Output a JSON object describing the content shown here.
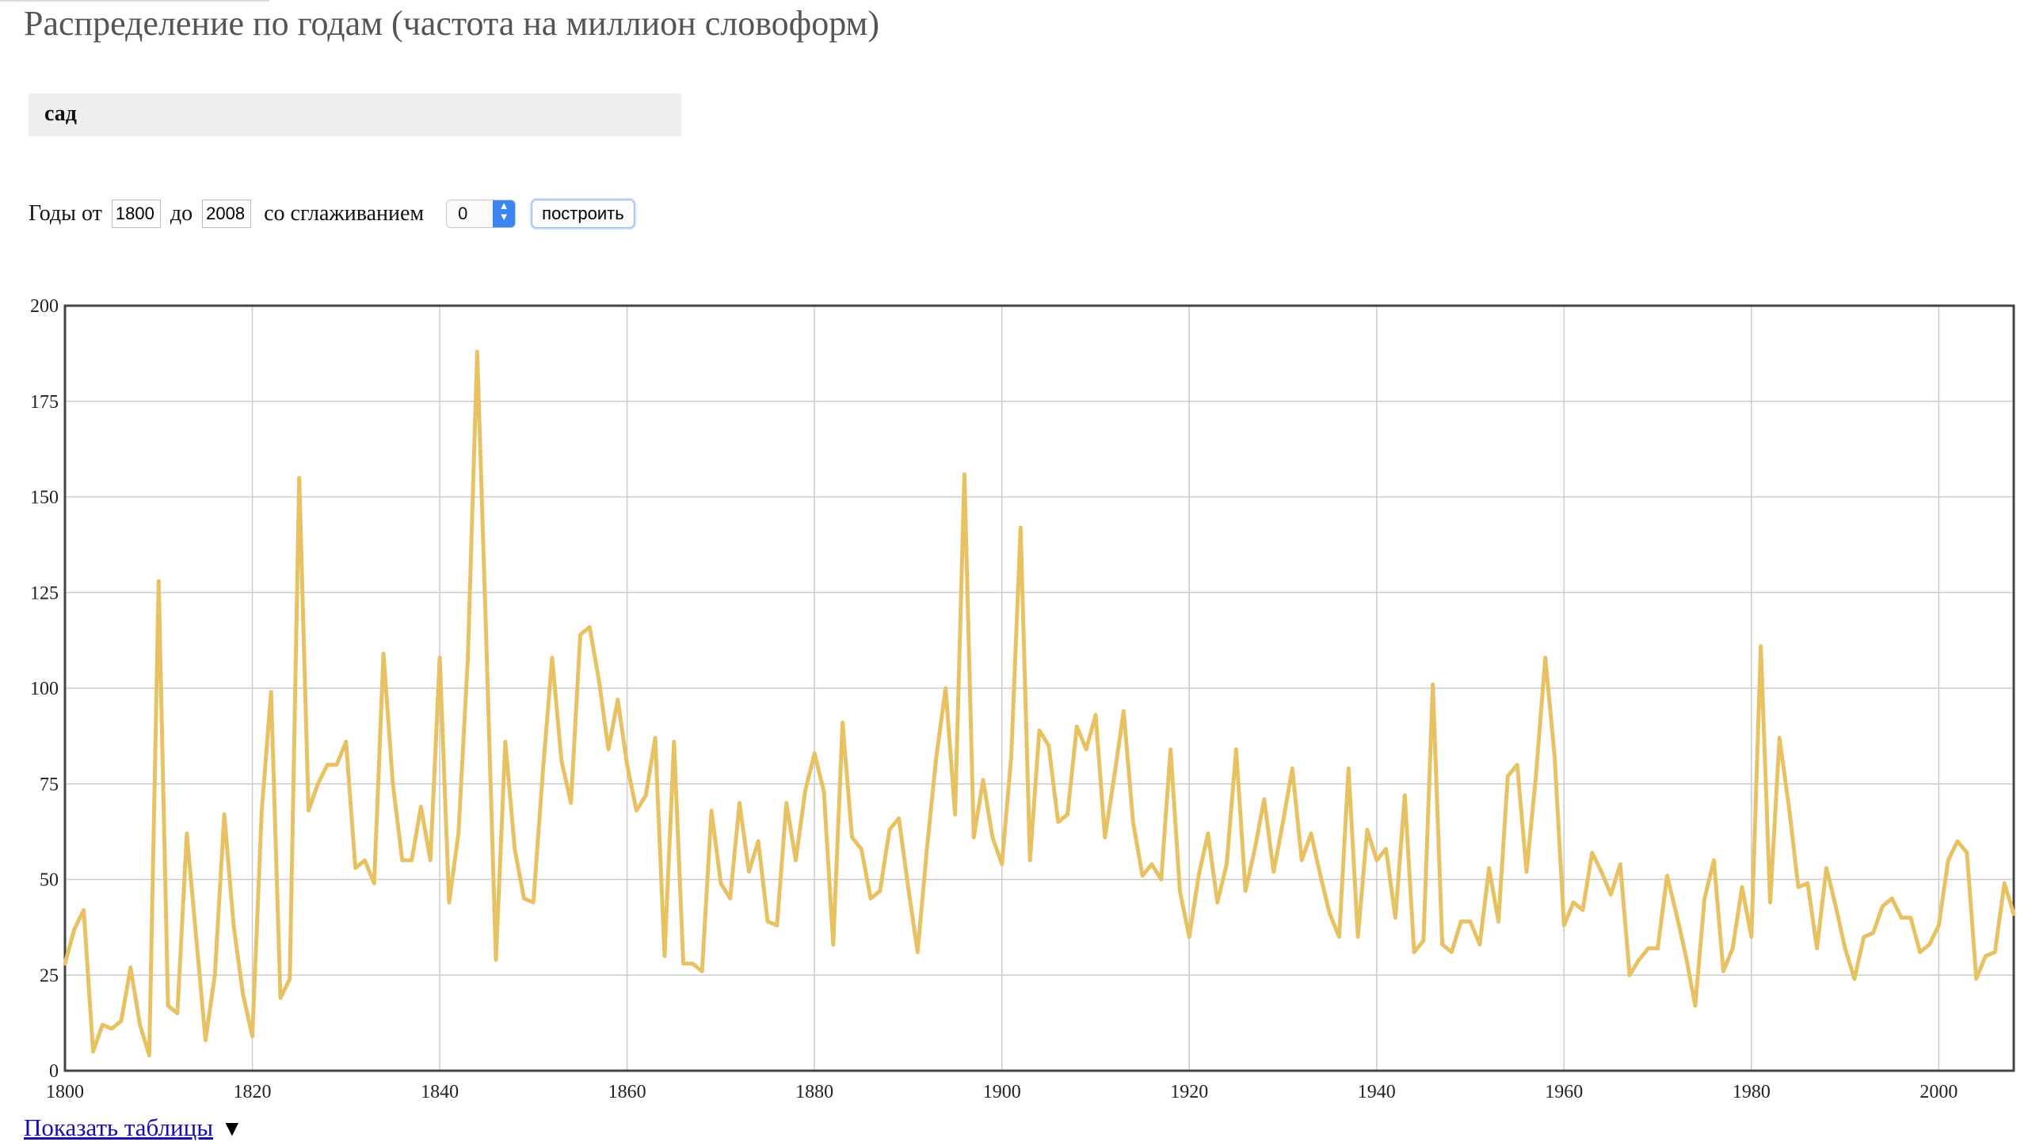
{
  "page": {
    "title": "Распределение по годам (частота на миллион словоформ)"
  },
  "query": {
    "text": "сад"
  },
  "controls": {
    "years_from_label": "Годы от",
    "year_from": "1800",
    "to_label": "до",
    "year_to": "2008",
    "smoothing_label": "со сглаживанием",
    "smoothing_value": "0",
    "build_button": "построить"
  },
  "footer": {
    "show_tables_link": "Показать таблицы",
    "toggle_arrow": "▼"
  },
  "colors": {
    "series": "#e8c163",
    "grid": "#cccccc",
    "frame": "#444444"
  },
  "chart_data": {
    "type": "line",
    "title": "",
    "xlabel": "",
    "ylabel": "",
    "xlim": [
      1800,
      2008
    ],
    "ylim": [
      0,
      200
    ],
    "xticks": [
      1800,
      1820,
      1840,
      1860,
      1880,
      1900,
      1920,
      1940,
      1960,
      1980,
      2000
    ],
    "yticks": [
      0,
      25,
      50,
      75,
      100,
      125,
      150,
      175,
      200
    ],
    "grid": true,
    "legend": "none",
    "series": [
      {
        "x": [
          1800,
          1801,
          1802,
          1803,
          1804,
          1805,
          1806,
          1807,
          1808,
          1809,
          1810,
          1811,
          1812,
          1813,
          1814,
          1815,
          1816,
          1817,
          1818,
          1819,
          1820,
          1821,
          1822,
          1823,
          1824,
          1825,
          1826,
          1827,
          1828,
          1829,
          1830,
          1831,
          1832,
          1833,
          1834,
          1835,
          1836,
          1837,
          1838,
          1839,
          1840,
          1841,
          1842,
          1843,
          1844,
          1845,
          1846,
          1847,
          1848,
          1849,
          1850,
          1851,
          1852,
          1853,
          1854,
          1855,
          1856,
          1857,
          1858,
          1859,
          1860,
          1861,
          1862,
          1863,
          1864,
          1865,
          1866,
          1867,
          1868,
          1869,
          1870,
          1871,
          1872,
          1873,
          1874,
          1875,
          1876,
          1877,
          1878,
          1879,
          1880,
          1881,
          1882,
          1883,
          1884,
          1885,
          1886,
          1887,
          1888,
          1889,
          1890,
          1891,
          1892,
          1893,
          1894,
          1895,
          1896,
          1897,
          1898,
          1899,
          1900,
          1901,
          1902,
          1903,
          1904,
          1905,
          1906,
          1907,
          1908,
          1909,
          1910,
          1911,
          1912,
          1913,
          1914,
          1915,
          1916,
          1917,
          1918,
          1919,
          1920,
          1921,
          1922,
          1923,
          1924,
          1925,
          1926,
          1927,
          1928,
          1929,
          1930,
          1931,
          1932,
          1933,
          1934,
          1935,
          1936,
          1937,
          1938,
          1939,
          1940,
          1941,
          1942,
          1943,
          1944,
          1945,
          1946,
          1947,
          1948,
          1949,
          1950,
          1951,
          1952,
          1953,
          1954,
          1955,
          1956,
          1957,
          1958,
          1959,
          1960,
          1961,
          1962,
          1963,
          1964,
          1965,
          1966,
          1967,
          1968,
          1969,
          1970,
          1971,
          1972,
          1973,
          1974,
          1975,
          1976,
          1977,
          1978,
          1979,
          1980,
          1981,
          1982,
          1983,
          1984,
          1985,
          1986,
          1987,
          1988,
          1989,
          1990,
          1991,
          1992,
          1993,
          1994,
          1995,
          1996,
          1997,
          1998,
          1999,
          2000,
          2001,
          2002,
          2003,
          2004,
          2005,
          2006,
          2007,
          2008
        ],
        "y": [
          28,
          37,
          42,
          5,
          12,
          11,
          13,
          27,
          12,
          4,
          128,
          17,
          15,
          62,
          35,
          8,
          25,
          67,
          38,
          20,
          9,
          68,
          99,
          19,
          24,
          155,
          68,
          75,
          80,
          80,
          86,
          53,
          55,
          49,
          109,
          75,
          55,
          55,
          69,
          55,
          108,
          44,
          62,
          108,
          188,
          110,
          29,
          86,
          58,
          45,
          44,
          78,
          108,
          81,
          70,
          114,
          116,
          102,
          84,
          97,
          80,
          68,
          72,
          87,
          30,
          86,
          28,
          28,
          26,
          68,
          49,
          45,
          70,
          52,
          60,
          39,
          38,
          70,
          55,
          73,
          83,
          73,
          33,
          91,
          61,
          58,
          45,
          47,
          63,
          66,
          48,
          31,
          58,
          82,
          100,
          67,
          156,
          61,
          76,
          61,
          54,
          82,
          142,
          55,
          89,
          85,
          65,
          67,
          90,
          84,
          93,
          61,
          77,
          94,
          65,
          51,
          54,
          50,
          84,
          47,
          35,
          51,
          62,
          44,
          54,
          84,
          47,
          58,
          71,
          52,
          65,
          79,
          55,
          62,
          51,
          41,
          35,
          79,
          35,
          63,
          55,
          58,
          40,
          72,
          31,
          34,
          101,
          33,
          31,
          39,
          39,
          33,
          53,
          39,
          77,
          80,
          52,
          77,
          108,
          82,
          38,
          44,
          42,
          57,
          52,
          46,
          54,
          25,
          29,
          32,
          32,
          51,
          41,
          30,
          17,
          45,
          55,
          26,
          32,
          48,
          35,
          111,
          44,
          87,
          69,
          48,
          49,
          32,
          53,
          43,
          32,
          24,
          35,
          36,
          43,
          45,
          40,
          40,
          31,
          33,
          38,
          55,
          60,
          57,
          24,
          30,
          31,
          49,
          41
        ]
      }
    ]
  }
}
